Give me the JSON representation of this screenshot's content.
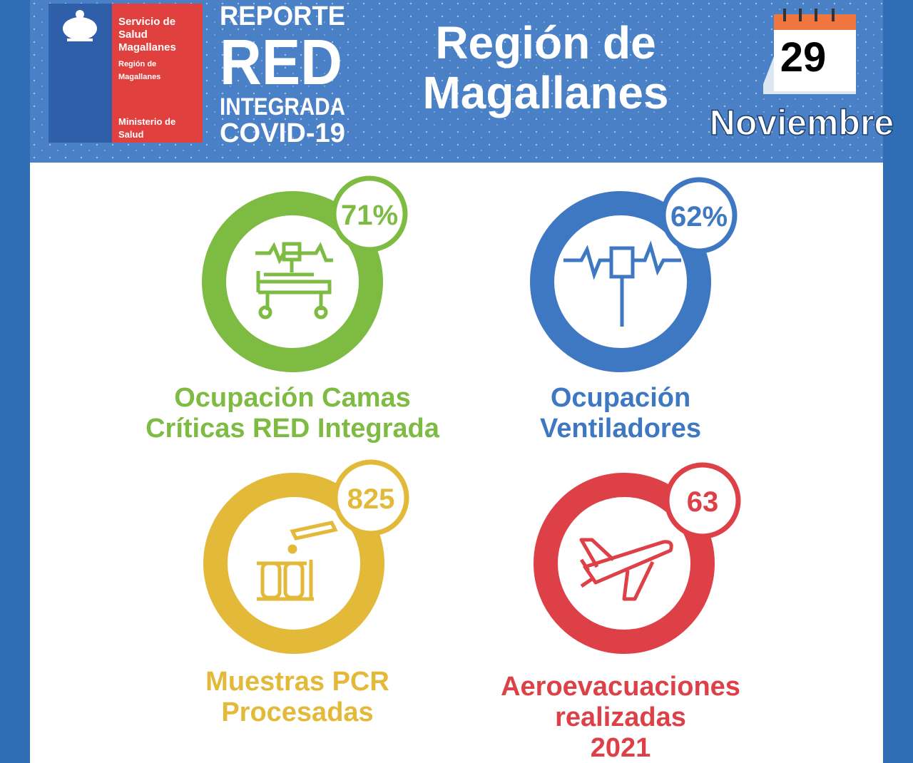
{
  "header": {
    "logo": {
      "org_lines": [
        "Servicio de",
        "Salud",
        "Magallanes"
      ],
      "region_lines": [
        "Región de",
        "Magallanes"
      ],
      "ministry_lines": [
        "Ministerio de",
        "Salud"
      ]
    },
    "report": [
      "REPORTE",
      "RED",
      "INTEGRADA",
      "COVID-19"
    ],
    "region": [
      "Región de",
      "Magallanes"
    ],
    "date": {
      "day": "29",
      "month": "Noviembre"
    }
  },
  "stats": [
    {
      "value": "71%",
      "label": [
        "Ocupación Camas",
        "Críticas RED Integrada"
      ],
      "color": "#7dbb42"
    },
    {
      "value": "62%",
      "label": [
        "Ocupación",
        "Ventiladores"
      ],
      "color": "#3f78c2"
    },
    {
      "value": "825",
      "label": [
        "Muestras PCR",
        "Procesadas"
      ],
      "color": "#e3b93a"
    },
    {
      "value": "63",
      "label": [
        "Aeroevacuaciones",
        "realizadas",
        "2021"
      ],
      "color": "#de4047"
    }
  ]
}
